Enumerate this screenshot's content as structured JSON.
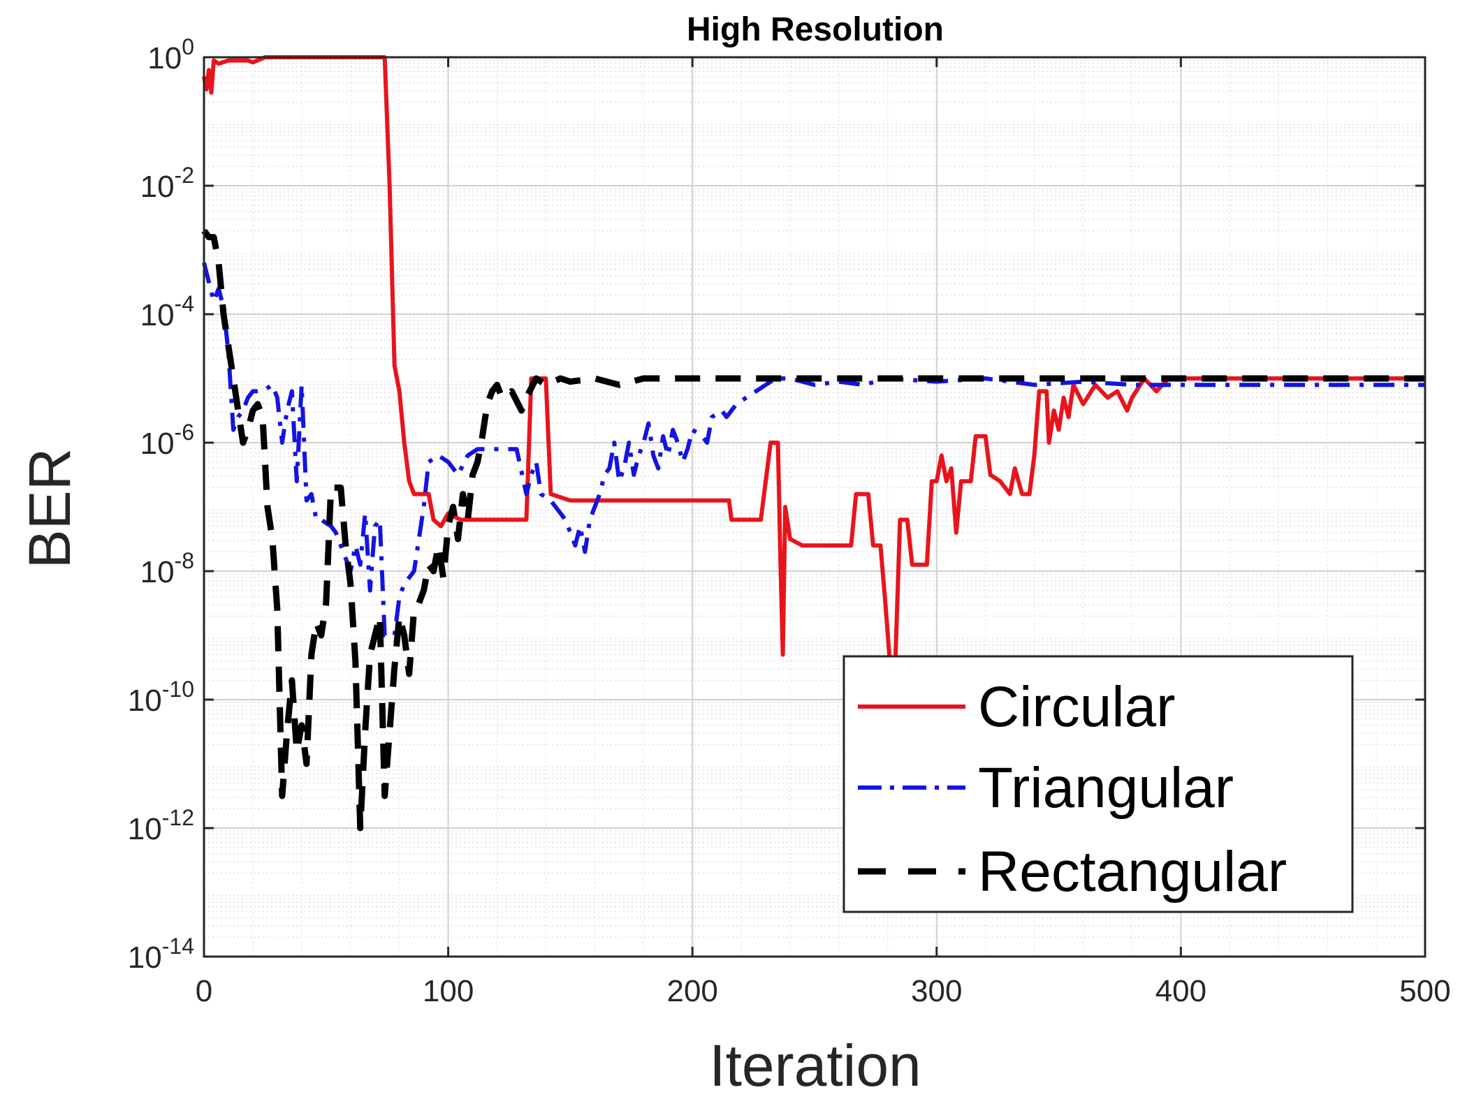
{
  "chart_data": {
    "type": "line",
    "title": "High Resolution",
    "xlabel": "Iteration",
    "ylabel": "BER",
    "xlim": [
      0,
      500
    ],
    "ylim_exponent": [
      -14,
      0
    ],
    "yscale": "log",
    "grid": true,
    "minor_grid": true,
    "legend_position": "bottom-right",
    "x_ticks": [
      "0",
      "100",
      "200",
      "300",
      "400",
      "500"
    ],
    "y_ticks": [
      {
        "base": "10",
        "exp": "0"
      },
      {
        "base": "10",
        "exp": "-2"
      },
      {
        "base": "10",
        "exp": "-4"
      },
      {
        "base": "10",
        "exp": "-6"
      },
      {
        "base": "10",
        "exp": "-8"
      },
      {
        "base": "10",
        "exp": "-10"
      },
      {
        "base": "10",
        "exp": "-12"
      },
      {
        "base": "10",
        "exp": "-14"
      }
    ],
    "series": [
      {
        "name": "Circular",
        "color": "#e8141c",
        "dash": "solid",
        "points": [
          [
            0,
            -0.3
          ],
          [
            1,
            -0.5
          ],
          [
            2,
            -0.2
          ],
          [
            3,
            -0.55
          ],
          [
            4,
            -0.05
          ],
          [
            6,
            -0.1
          ],
          [
            10,
            -0.05
          ],
          [
            18,
            -0.05
          ],
          [
            20,
            -0.08
          ],
          [
            25,
            0
          ],
          [
            40,
            0
          ],
          [
            60,
            0
          ],
          [
            74,
            0
          ],
          [
            76,
            -2
          ],
          [
            78,
            -4.8
          ],
          [
            80,
            -5.2
          ],
          [
            82,
            -6.0
          ],
          [
            84,
            -6.6
          ],
          [
            86,
            -6.8
          ],
          [
            92,
            -6.8
          ],
          [
            94,
            -7.2
          ],
          [
            97,
            -7.3
          ],
          [
            100,
            -7.1
          ],
          [
            105,
            -7.2
          ],
          [
            120,
            -7.2
          ],
          [
            132,
            -7.2
          ],
          [
            134,
            -5.0
          ],
          [
            140,
            -5.0
          ],
          [
            142,
            -6.8
          ],
          [
            150,
            -6.9
          ],
          [
            180,
            -6.9
          ],
          [
            215,
            -6.9
          ],
          [
            216,
            -7.2
          ],
          [
            228,
            -7.2
          ],
          [
            232,
            -6.0
          ],
          [
            235,
            -6.0
          ],
          [
            236,
            -7.8
          ],
          [
            237,
            -9.3
          ],
          [
            238,
            -7.0
          ],
          [
            240,
            -7.5
          ],
          [
            245,
            -7.6
          ],
          [
            265,
            -7.6
          ],
          [
            267,
            -6.8
          ],
          [
            272,
            -6.8
          ],
          [
            274,
            -7.6
          ],
          [
            277,
            -7.6
          ],
          [
            279,
            -8.5
          ],
          [
            281,
            -9.5
          ],
          [
            283,
            -9.5
          ],
          [
            285,
            -7.2
          ],
          [
            288,
            -7.2
          ],
          [
            290,
            -7.9
          ],
          [
            296,
            -7.9
          ],
          [
            298,
            -6.6
          ],
          [
            300,
            -6.6
          ],
          [
            302,
            -6.2
          ],
          [
            304,
            -6.6
          ],
          [
            306,
            -6.4
          ],
          [
            308,
            -7.4
          ],
          [
            310,
            -6.6
          ],
          [
            314,
            -6.6
          ],
          [
            316,
            -5.9
          ],
          [
            320,
            -5.9
          ],
          [
            322,
            -6.5
          ],
          [
            326,
            -6.6
          ],
          [
            330,
            -6.8
          ],
          [
            332,
            -6.4
          ],
          [
            335,
            -6.8
          ],
          [
            338,
            -6.8
          ],
          [
            340,
            -6.2
          ],
          [
            342,
            -5.2
          ],
          [
            345,
            -5.2
          ],
          [
            346,
            -6.0
          ],
          [
            348,
            -5.5
          ],
          [
            350,
            -5.8
          ],
          [
            352,
            -5.3
          ],
          [
            354,
            -5.6
          ],
          [
            356,
            -5.1
          ],
          [
            360,
            -5.4
          ],
          [
            365,
            -5.1
          ],
          [
            370,
            -5.3
          ],
          [
            374,
            -5.2
          ],
          [
            378,
            -5.5
          ],
          [
            380,
            -5.3
          ],
          [
            385,
            -5.0
          ],
          [
            390,
            -5.2
          ],
          [
            395,
            -5.0
          ],
          [
            400,
            -5.0
          ],
          [
            440,
            -5.0
          ],
          [
            470,
            -5.0
          ],
          [
            500,
            -5.0
          ]
        ]
      },
      {
        "name": "Triangular",
        "color": "#1414e0",
        "dash": "dashdot",
        "points": [
          [
            0,
            -3.2
          ],
          [
            2,
            -3.5
          ],
          [
            4,
            -3.8
          ],
          [
            6,
            -3.6
          ],
          [
            8,
            -3.9
          ],
          [
            10,
            -4.6
          ],
          [
            12,
            -5.8
          ],
          [
            14,
            -5.6
          ],
          [
            16,
            -5.5
          ],
          [
            18,
            -5.3
          ],
          [
            20,
            -5.2
          ],
          [
            24,
            -5.2
          ],
          [
            28,
            -5.1
          ],
          [
            30,
            -5.3
          ],
          [
            32,
            -6.0
          ],
          [
            34,
            -5.5
          ],
          [
            36,
            -5.2
          ],
          [
            38,
            -6.6
          ],
          [
            40,
            -5.1
          ],
          [
            42,
            -6.9
          ],
          [
            44,
            -6.8
          ],
          [
            46,
            -7.2
          ],
          [
            48,
            -7.2
          ],
          [
            52,
            -7.3
          ],
          [
            54,
            -7.4
          ],
          [
            58,
            -7.8
          ],
          [
            60,
            -8.0
          ],
          [
            62,
            -7.6
          ],
          [
            64,
            -7.9
          ],
          [
            66,
            -7.1
          ],
          [
            68,
            -8.3
          ],
          [
            70,
            -7.3
          ],
          [
            72,
            -7.2
          ],
          [
            74,
            -9.0
          ],
          [
            78,
            -9.0
          ],
          [
            80,
            -8.4
          ],
          [
            82,
            -8.2
          ],
          [
            86,
            -8.0
          ],
          [
            88,
            -7.5
          ],
          [
            90,
            -7.0
          ],
          [
            92,
            -6.3
          ],
          [
            96,
            -6.2
          ],
          [
            100,
            -6.3
          ],
          [
            104,
            -6.5
          ],
          [
            108,
            -6.2
          ],
          [
            112,
            -6.1
          ],
          [
            120,
            -6.1
          ],
          [
            128,
            -6.1
          ],
          [
            132,
            -6.8
          ],
          [
            134,
            -6.5
          ],
          [
            136,
            -6.3
          ],
          [
            138,
            -6.8
          ],
          [
            142,
            -6.9
          ],
          [
            146,
            -7.1
          ],
          [
            148,
            -7.2
          ],
          [
            150,
            -7.4
          ],
          [
            152,
            -7.6
          ],
          [
            154,
            -7.3
          ],
          [
            156,
            -7.7
          ],
          [
            158,
            -7.2
          ],
          [
            160,
            -7.0
          ],
          [
            162,
            -6.8
          ],
          [
            164,
            -6.5
          ],
          [
            166,
            -6.4
          ],
          [
            168,
            -6.0
          ],
          [
            170,
            -6.6
          ],
          [
            172,
            -6.4
          ],
          [
            174,
            -6.0
          ],
          [
            176,
            -6.5
          ],
          [
            178,
            -6.2
          ],
          [
            180,
            -6.0
          ],
          [
            182,
            -5.7
          ],
          [
            184,
            -6.2
          ],
          [
            186,
            -6.4
          ],
          [
            188,
            -5.9
          ],
          [
            190,
            -6.2
          ],
          [
            192,
            -5.8
          ],
          [
            194,
            -6.0
          ],
          [
            196,
            -6.3
          ],
          [
            198,
            -6.1
          ],
          [
            200,
            -5.8
          ],
          [
            204,
            -5.9
          ],
          [
            206,
            -6.0
          ],
          [
            208,
            -5.6
          ],
          [
            212,
            -5.5
          ],
          [
            214,
            -5.6
          ],
          [
            218,
            -5.4
          ],
          [
            222,
            -5.3
          ],
          [
            226,
            -5.2
          ],
          [
            230,
            -5.1
          ],
          [
            234,
            -5.0
          ],
          [
            240,
            -5.0
          ],
          [
            250,
            -5.1
          ],
          [
            260,
            -5.05
          ],
          [
            270,
            -5.1
          ],
          [
            280,
            -5.0
          ],
          [
            300,
            -5.05
          ],
          [
            320,
            -5.0
          ],
          [
            340,
            -5.1
          ],
          [
            360,
            -5.05
          ],
          [
            380,
            -5.1
          ],
          [
            400,
            -5.1
          ],
          [
            420,
            -5.1
          ],
          [
            450,
            -5.1
          ],
          [
            480,
            -5.1
          ],
          [
            500,
            -5.1
          ]
        ]
      },
      {
        "name": "Rectangular",
        "color": "#000000",
        "dash": "dashed",
        "points": [
          [
            0,
            -2.7
          ],
          [
            2,
            -2.8
          ],
          [
            4,
            -2.8
          ],
          [
            6,
            -3.2
          ],
          [
            8,
            -4.0
          ],
          [
            10,
            -4.5
          ],
          [
            12,
            -5.0
          ],
          [
            14,
            -5.5
          ],
          [
            16,
            -6.0
          ],
          [
            18,
            -5.8
          ],
          [
            20,
            -5.5
          ],
          [
            22,
            -5.4
          ],
          [
            24,
            -5.6
          ],
          [
            26,
            -7.0
          ],
          [
            28,
            -7.5
          ],
          [
            30,
            -8.6
          ],
          [
            32,
            -11.5
          ],
          [
            34,
            -10.5
          ],
          [
            36,
            -9.7
          ],
          [
            38,
            -10.8
          ],
          [
            40,
            -10.4
          ],
          [
            42,
            -11.0
          ],
          [
            44,
            -9.3
          ],
          [
            46,
            -8.8
          ],
          [
            48,
            -9.0
          ],
          [
            50,
            -8.5
          ],
          [
            52,
            -6.7
          ],
          [
            56,
            -6.7
          ],
          [
            58,
            -7.6
          ],
          [
            60,
            -8.2
          ],
          [
            62,
            -9.4
          ],
          [
            64,
            -12.0
          ],
          [
            66,
            -10.5
          ],
          [
            68,
            -9.3
          ],
          [
            70,
            -9.0
          ],
          [
            72,
            -8.7
          ],
          [
            74,
            -11.5
          ],
          [
            76,
            -10.5
          ],
          [
            78,
            -9.5
          ],
          [
            80,
            -8.7
          ],
          [
            82,
            -9.0
          ],
          [
            84,
            -9.6
          ],
          [
            86,
            -8.6
          ],
          [
            88,
            -8.5
          ],
          [
            90,
            -8.3
          ],
          [
            92,
            -7.9
          ],
          [
            94,
            -8.0
          ],
          [
            96,
            -7.6
          ],
          [
            98,
            -8.1
          ],
          [
            100,
            -7.3
          ],
          [
            102,
            -7.0
          ],
          [
            104,
            -7.5
          ],
          [
            106,
            -6.8
          ],
          [
            108,
            -7.2
          ],
          [
            110,
            -6.5
          ],
          [
            112,
            -6.3
          ],
          [
            114,
            -5.9
          ],
          [
            116,
            -5.4
          ],
          [
            118,
            -5.2
          ],
          [
            120,
            -5.1
          ],
          [
            122,
            -5.3
          ],
          [
            126,
            -5.2
          ],
          [
            130,
            -5.5
          ],
          [
            132,
            -5.3
          ],
          [
            136,
            -5.0
          ],
          [
            140,
            -5.1
          ],
          [
            146,
            -5.0
          ],
          [
            150,
            -5.05
          ],
          [
            160,
            -5.0
          ],
          [
            170,
            -5.1
          ],
          [
            180,
            -5.0
          ],
          [
            200,
            -5.0
          ],
          [
            250,
            -5.0
          ],
          [
            300,
            -5.0
          ],
          [
            350,
            -5.0
          ],
          [
            400,
            -5.0
          ],
          [
            450,
            -5.0
          ],
          [
            500,
            -5.0
          ]
        ]
      }
    ]
  }
}
